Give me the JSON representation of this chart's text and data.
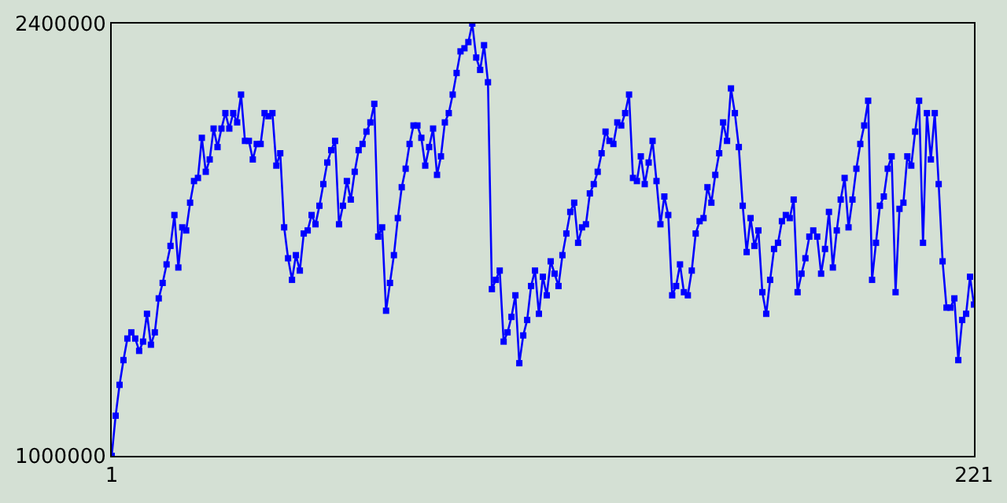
{
  "chart_data": {
    "type": "line",
    "x": [
      1,
      2,
      3,
      4,
      5,
      6,
      7,
      8,
      9,
      10,
      11,
      12,
      13,
      14,
      15,
      16,
      17,
      18,
      19,
      20,
      21,
      22,
      23,
      24,
      25,
      26,
      27,
      28,
      29,
      30,
      31,
      32,
      33,
      34,
      35,
      36,
      37,
      38,
      39,
      40,
      41,
      42,
      43,
      44,
      45,
      46,
      47,
      48,
      49,
      50,
      51,
      52,
      53,
      54,
      55,
      56,
      57,
      58,
      59,
      60,
      61,
      62,
      63,
      64,
      65,
      66,
      67,
      68,
      69,
      70,
      71,
      72,
      73,
      74,
      75,
      76,
      77,
      78,
      79,
      80,
      81,
      82,
      83,
      84,
      85,
      86,
      87,
      88,
      89,
      90,
      91,
      92,
      93,
      94,
      95,
      96,
      97,
      98,
      99,
      100,
      101,
      102,
      103,
      104,
      105,
      106,
      107,
      108,
      109,
      110,
      111,
      112,
      113,
      114,
      115,
      116,
      117,
      118,
      119,
      120,
      121,
      122,
      123,
      124,
      125,
      126,
      127,
      128,
      129,
      130,
      131,
      132,
      133,
      134,
      135,
      136,
      137,
      138,
      139,
      140,
      141,
      142,
      143,
      144,
      145,
      146,
      147,
      148,
      149,
      150,
      151,
      152,
      153,
      154,
      155,
      156,
      157,
      158,
      159,
      160,
      161,
      162,
      163,
      164,
      165,
      166,
      167,
      168,
      169,
      170,
      171,
      172,
      173,
      174,
      175,
      176,
      177,
      178,
      179,
      180,
      181,
      182,
      183,
      184,
      185,
      186,
      187,
      188,
      189,
      190,
      191,
      192,
      193,
      194,
      195,
      196,
      197,
      198,
      199,
      200,
      201,
      202,
      203,
      204,
      205,
      206,
      207,
      208,
      209,
      210,
      211,
      212,
      213,
      214,
      215,
      216,
      217,
      218,
      219,
      220,
      221
    ],
    "series": [
      {
        "color": "#0000ff",
        "values": [
          1000000,
          1130000,
          1230000,
          1310000,
          1380000,
          1400000,
          1380000,
          1340000,
          1370000,
          1460000,
          1360000,
          1400000,
          1510000,
          1560000,
          1620000,
          1680000,
          1780000,
          1610000,
          1740000,
          1730000,
          1820000,
          1890000,
          1900000,
          2030000,
          1920000,
          1960000,
          2060000,
          2000000,
          2060000,
          2110000,
          2060000,
          2110000,
          2080000,
          2170000,
          2020000,
          2020000,
          1960000,
          2010000,
          2010000,
          2110000,
          2100000,
          2110000,
          1940000,
          1980000,
          1740000,
          1640000,
          1570000,
          1650000,
          1600000,
          1720000,
          1730000,
          1780000,
          1750000,
          1810000,
          1880000,
          1950000,
          1990000,
          2020000,
          1750000,
          1810000,
          1890000,
          1830000,
          1920000,
          1990000,
          2010000,
          2050000,
          2080000,
          2140000,
          1710000,
          1740000,
          1470000,
          1560000,
          1650000,
          1770000,
          1870000,
          1930000,
          2010000,
          2070000,
          2070000,
          2030000,
          1940000,
          2000000,
          2060000,
          1910000,
          1970000,
          2080000,
          2110000,
          2170000,
          2240000,
          2310000,
          2320000,
          2340000,
          2400000,
          2290000,
          2250000,
          2330000,
          2210000,
          1540000,
          1570000,
          1600000,
          1370000,
          1400000,
          1450000,
          1520000,
          1300000,
          1390000,
          1440000,
          1550000,
          1600000,
          1460000,
          1580000,
          1520000,
          1630000,
          1590000,
          1550000,
          1650000,
          1720000,
          1790000,
          1820000,
          1690000,
          1740000,
          1750000,
          1850000,
          1880000,
          1920000,
          1980000,
          2050000,
          2020000,
          2010000,
          2080000,
          2070000,
          2110000,
          2170000,
          1900000,
          1890000,
          1970000,
          1880000,
          1950000,
          2020000,
          1890000,
          1750000,
          1840000,
          1780000,
          1520000,
          1550000,
          1620000,
          1530000,
          1520000,
          1600000,
          1720000,
          1760000,
          1770000,
          1870000,
          1820000,
          1910000,
          1980000,
          2080000,
          2020000,
          2190000,
          2110000,
          2000000,
          1810000,
          1660000,
          1770000,
          1680000,
          1730000,
          1530000,
          1460000,
          1570000,
          1670000,
          1690000,
          1760000,
          1780000,
          1770000,
          1830000,
          1530000,
          1590000,
          1640000,
          1710000,
          1730000,
          1710000,
          1590000,
          1670000,
          1790000,
          1610000,
          1730000,
          1830000,
          1900000,
          1740000,
          1830000,
          1930000,
          2010000,
          2070000,
          2150000,
          1570000,
          1690000,
          1810000,
          1840000,
          1930000,
          1970000,
          1530000,
          1800000,
          1820000,
          1970000,
          1940000,
          2050000,
          2150000,
          1690000,
          2110000,
          1960000,
          2110000,
          1880000,
          1630000,
          1480000,
          1480000,
          1510000,
          1310000,
          1440000,
          1460000,
          1580000,
          1490000
        ]
      }
    ],
    "xlim": [
      1,
      221
    ],
    "xticks": [
      1,
      221
    ],
    "ylim": [
      1000000,
      2400000
    ],
    "yticks": [
      1000000,
      2400000
    ],
    "marker": "square",
    "line_style": "solid"
  }
}
